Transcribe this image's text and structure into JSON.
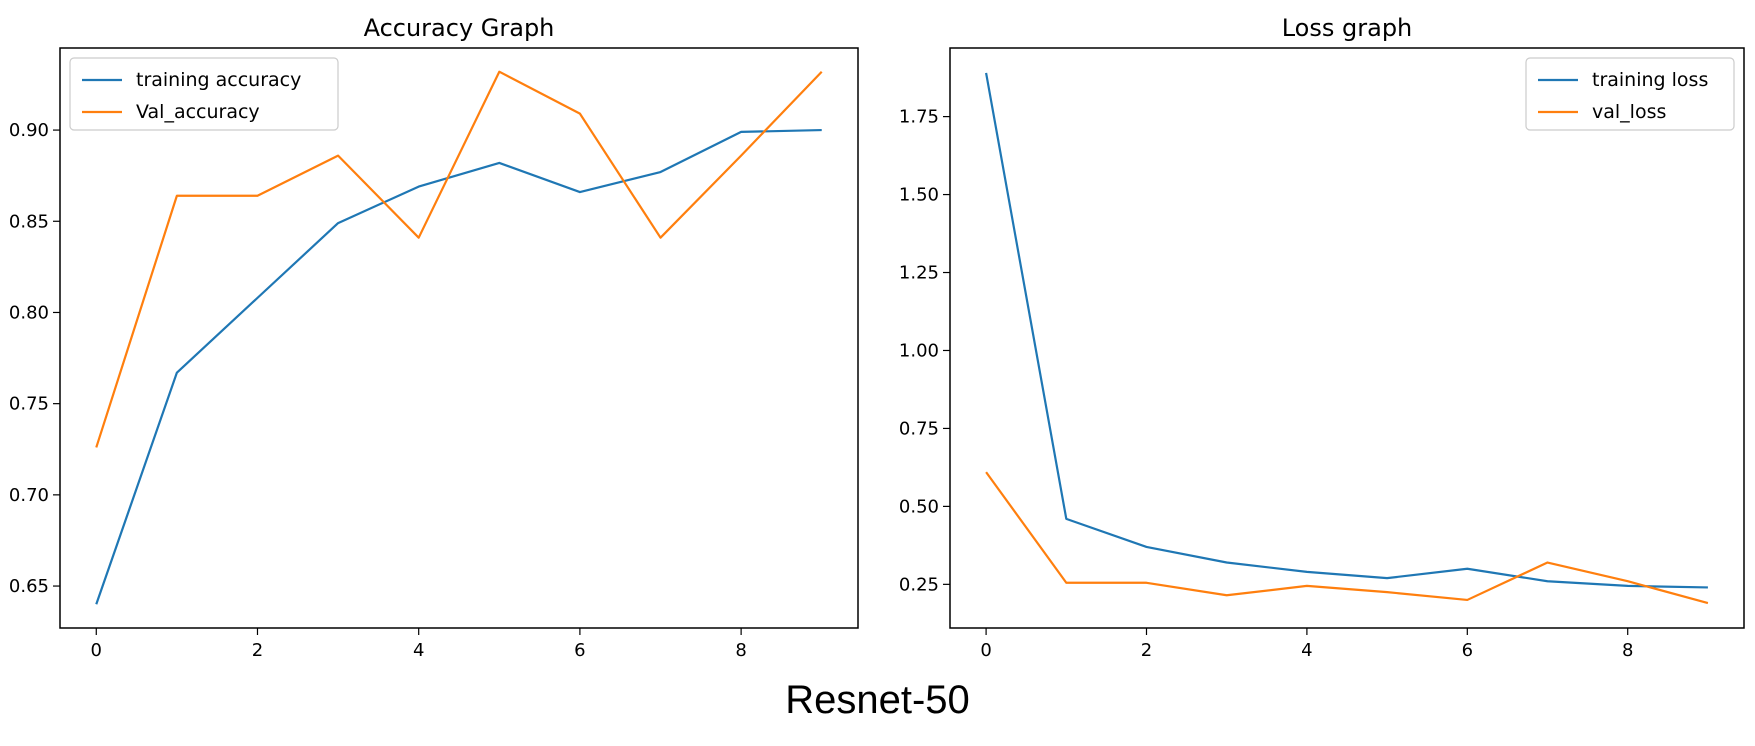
{
  "caption": "Resnet-50",
  "colors": {
    "training": "#1f77b4",
    "validation": "#ff7f0e"
  },
  "chart_data": [
    {
      "type": "line",
      "title": "Accuracy Graph",
      "xlabel": "",
      "ylabel": "",
      "x": [
        0,
        1,
        2,
        3,
        4,
        5,
        6,
        7,
        8,
        9
      ],
      "xticks": [
        0,
        2,
        4,
        6,
        8
      ],
      "yticks": [
        0.65,
        0.7,
        0.75,
        0.8,
        0.85,
        0.9
      ],
      "ytick_labels": [
        "0.65",
        "0.70",
        "0.75",
        "0.80",
        "0.85",
        "0.90"
      ],
      "xlim": [
        -0.45,
        9.45
      ],
      "ylim": [
        0.627,
        0.945
      ],
      "legend_position": "top-left",
      "grid": false,
      "series": [
        {
          "name": "training accuracy",
          "color": "#1f77b4",
          "values": [
            0.64,
            0.767,
            0.808,
            0.849,
            0.869,
            0.882,
            0.866,
            0.877,
            0.899,
            0.9
          ]
        },
        {
          "name": "Val_accuracy",
          "color": "#ff7f0e",
          "values": [
            0.726,
            0.864,
            0.864,
            0.886,
            0.841,
            0.932,
            0.909,
            0.841,
            0.886,
            0.932
          ]
        }
      ]
    },
    {
      "type": "line",
      "title": "Loss graph",
      "xlabel": "",
      "ylabel": "",
      "x": [
        0,
        1,
        2,
        3,
        4,
        5,
        6,
        7,
        8,
        9
      ],
      "xticks": [
        0,
        2,
        4,
        6,
        8
      ],
      "yticks": [
        0.25,
        0.5,
        0.75,
        1.0,
        1.25,
        1.5,
        1.75
      ],
      "ytick_labels": [
        "0.25",
        "0.50",
        "0.75",
        "1.00",
        "1.25",
        "1.50",
        "1.75"
      ],
      "xlim": [
        -0.45,
        9.45
      ],
      "ylim": [
        0.11,
        1.97
      ],
      "legend_position": "top-right",
      "grid": false,
      "series": [
        {
          "name": "training loss",
          "color": "#1f77b4",
          "values": [
            1.89,
            0.46,
            0.37,
            0.32,
            0.29,
            0.27,
            0.3,
            0.26,
            0.245,
            0.24
          ]
        },
        {
          "name": "val_loss",
          "color": "#ff7f0e",
          "values": [
            0.61,
            0.255,
            0.255,
            0.215,
            0.245,
            0.225,
            0.2,
            0.32,
            0.26,
            0.19
          ]
        }
      ]
    }
  ]
}
